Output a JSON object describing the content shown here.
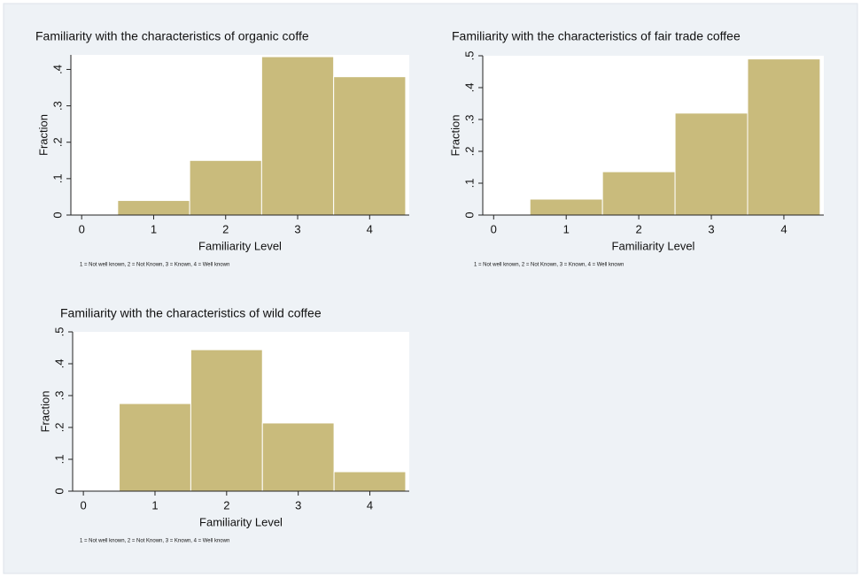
{
  "chart_data": [
    {
      "type": "histogram",
      "title": "Familiarity with the characteristics of organic coffe",
      "xlabel": "Familiarity Level",
      "ylabel": "Fraction",
      "note": "1 = Not well known, 2 = Not Known, 3 = Known, 4 = Well known",
      "bins": [
        0.5,
        1.5,
        2.5,
        3.5,
        4.5
      ],
      "values": [
        0.04,
        0.15,
        0.435,
        0.38
      ],
      "color": "#c9bb7c",
      "xlim": [
        -0.15,
        4.55
      ],
      "xticks": [
        0,
        1,
        2,
        3,
        4
      ],
      "ylim": [
        0,
        0.44
      ],
      "yticks": [
        0,
        {
          "value": 0.1,
          "label": ".1"
        },
        {
          "value": 0.2,
          "label": ".2"
        },
        {
          "value": 0.3,
          "label": ".3"
        },
        {
          "value": 0.4,
          "label": ".4"
        }
      ]
    },
    {
      "type": "histogram",
      "title": "Familiarity with the characteristics of fair trade coffee",
      "xlabel": "Familiarity Level",
      "ylabel": "Fraction",
      "note": "1 = Not well known, 2 = Not Known, 3 = Known, 4 = Well known",
      "bins": [
        0.5,
        1.5,
        2.5,
        3.5,
        4.5
      ],
      "values": [
        0.05,
        0.136,
        0.32,
        0.49
      ],
      "color": "#c9bb7c",
      "xlim": [
        -0.15,
        4.55
      ],
      "xticks": [
        0,
        1,
        2,
        3,
        4
      ],
      "ylim": [
        0,
        0.5
      ],
      "yticks": [
        0,
        {
          "value": 0.1,
          "label": ".1"
        },
        {
          "value": 0.2,
          "label": ".2"
        },
        {
          "value": 0.3,
          "label": ".3"
        },
        {
          "value": 0.4,
          "label": ".4"
        },
        {
          "value": 0.5,
          "label": ".5"
        }
      ]
    },
    {
      "type": "histogram",
      "title": "Familiarity with the characteristics of wild coffee",
      "xlabel": "Familiarity Level",
      "ylabel": "Fraction",
      "note": "1 = Not well known, 2 = Not Known, 3 = Known, 4 = Well known",
      "bins": [
        0.5,
        1.5,
        2.5,
        3.5,
        4.5
      ],
      "values": [
        0.275,
        0.444,
        0.214,
        0.061
      ],
      "color": "#c9bb7c",
      "xlim": [
        -0.15,
        4.55
      ],
      "xticks": [
        0,
        1,
        2,
        3,
        4
      ],
      "ylim": [
        0,
        0.5
      ],
      "yticks": [
        0,
        {
          "value": 0.1,
          "label": ".1"
        },
        {
          "value": 0.2,
          "label": ".2"
        },
        {
          "value": 0.3,
          "label": ".3"
        },
        {
          "value": 0.4,
          "label": ".4"
        },
        {
          "value": 0.5,
          "label": ".5"
        }
      ]
    }
  ]
}
